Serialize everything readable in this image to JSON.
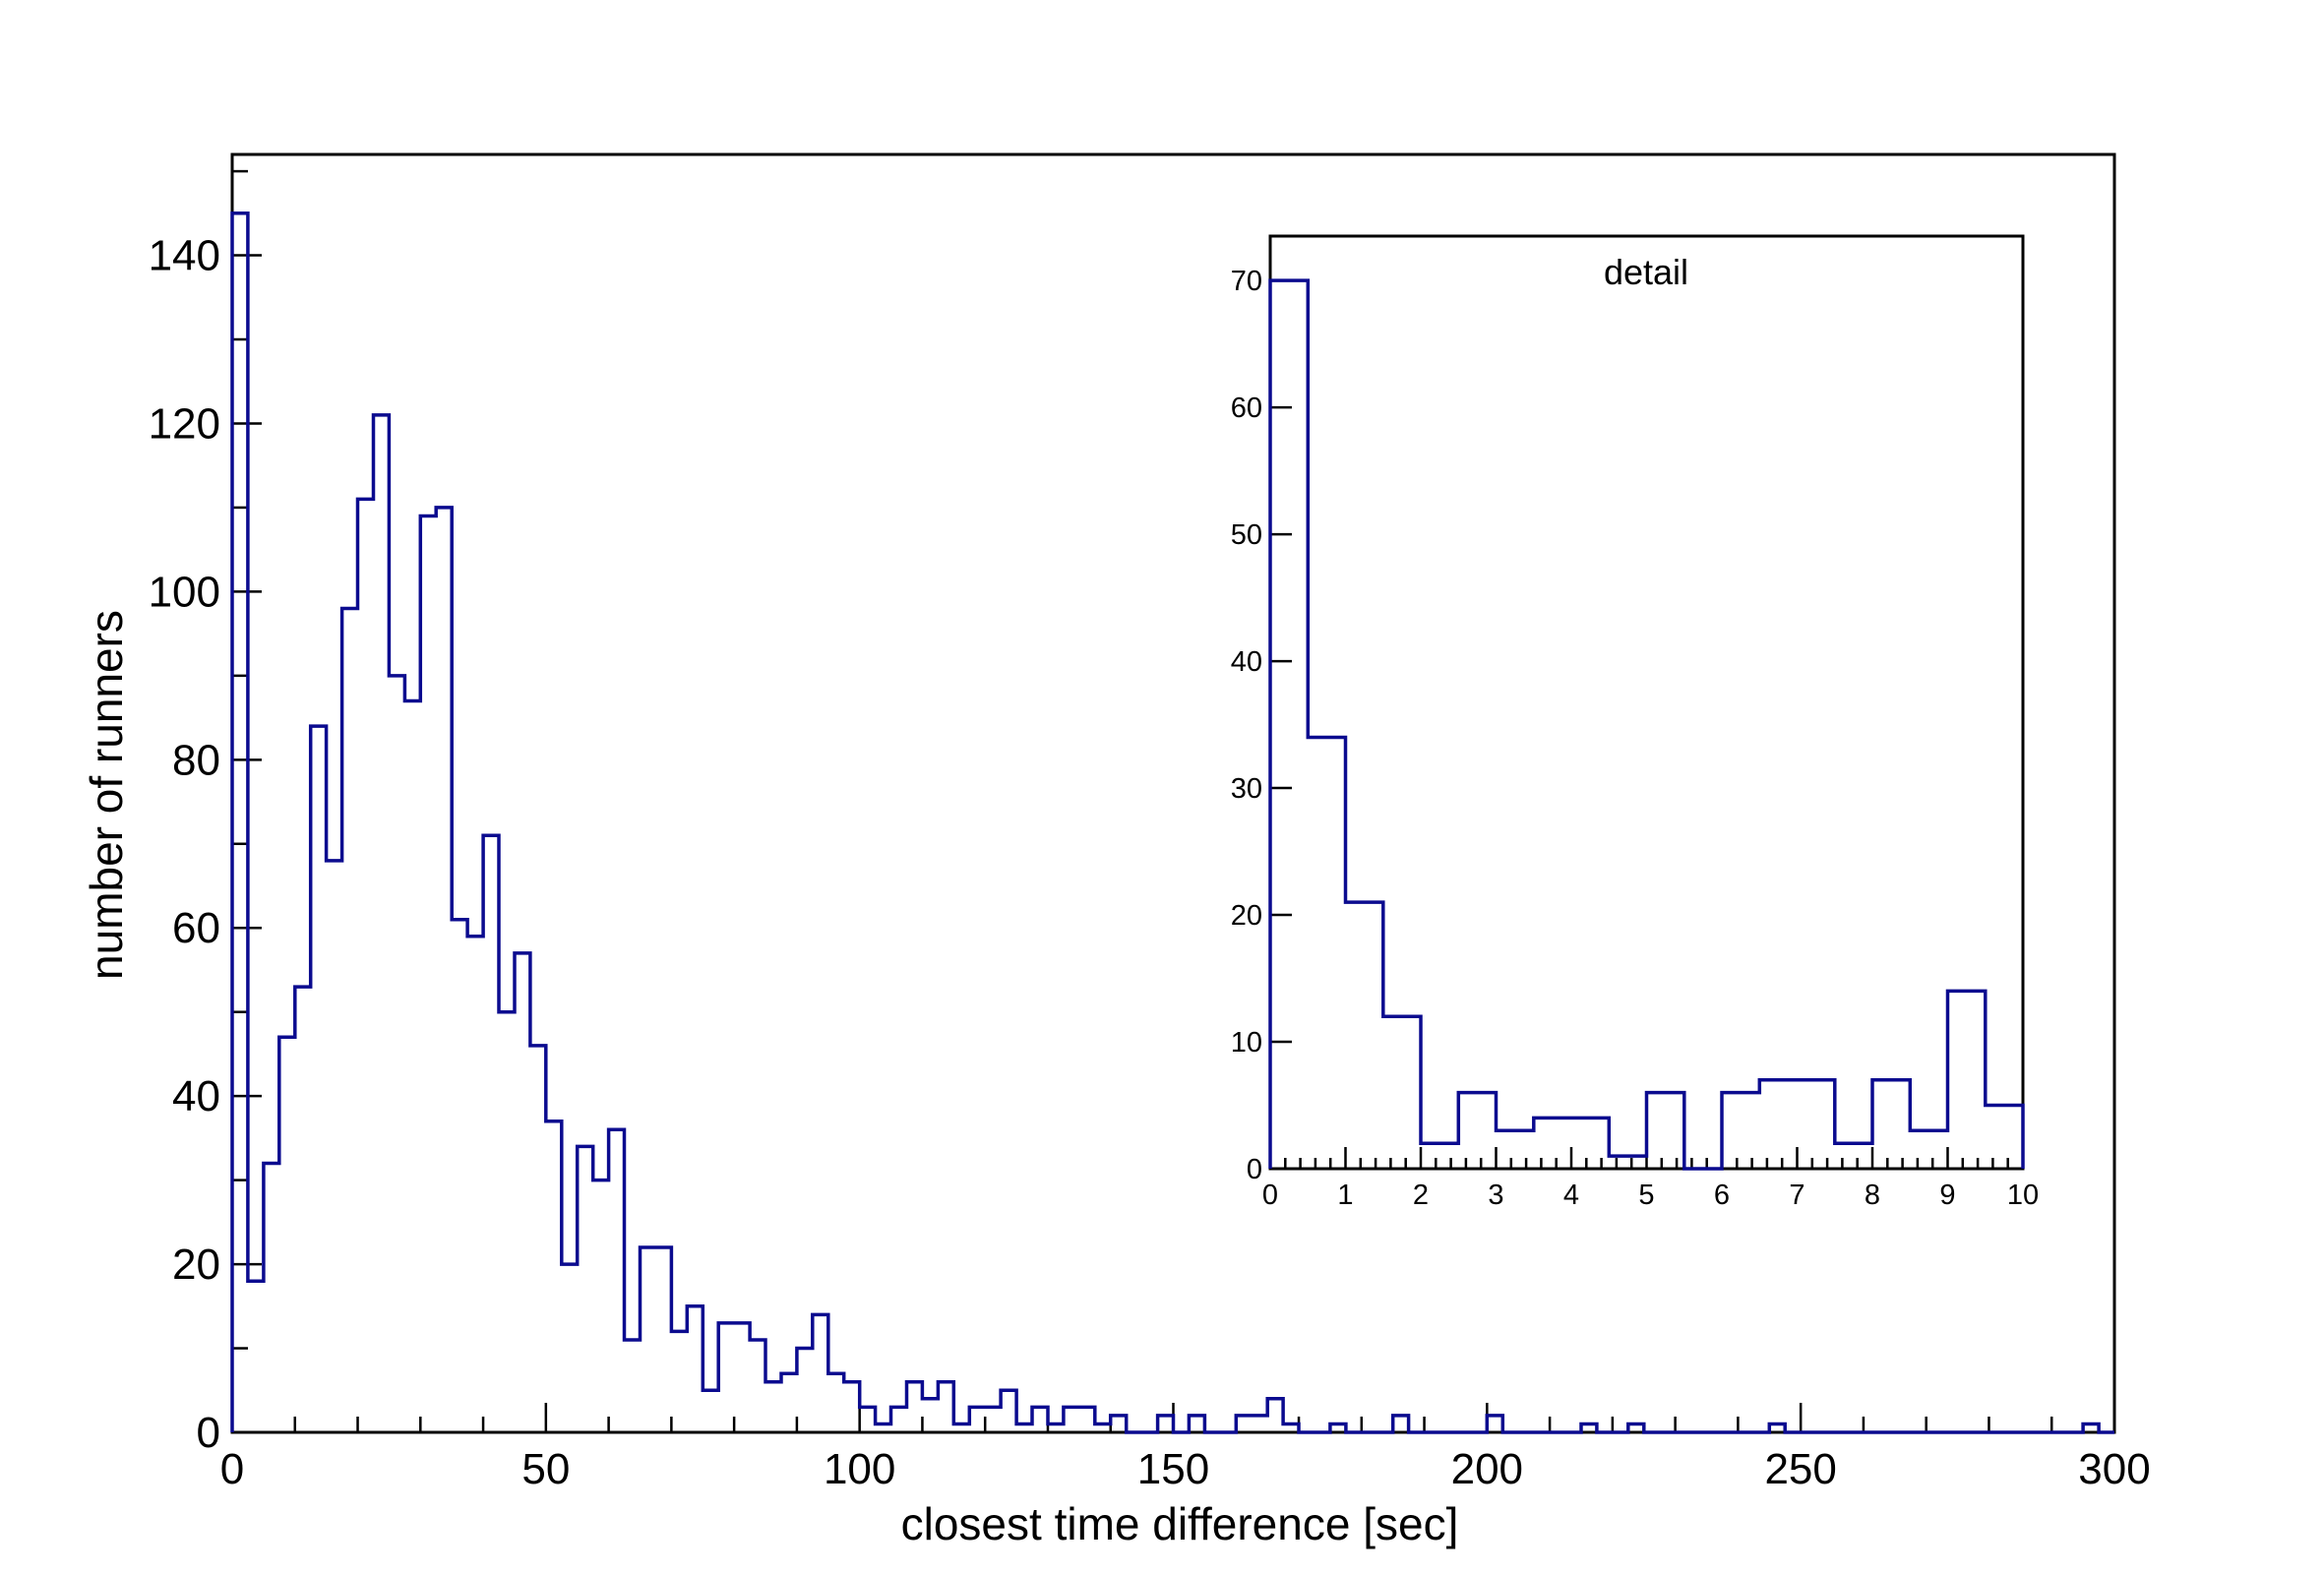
{
  "chart_data": [
    {
      "type": "bar",
      "style": "step-histogram",
      "line_color": "#0b0b8f",
      "title": "",
      "xlabel": "closest time difference [sec]",
      "ylabel": "number of runners",
      "xlim": [
        0,
        300
      ],
      "ylim": [
        0,
        152
      ],
      "bin_width": 2.5,
      "x_ticks": [
        0,
        50,
        100,
        150,
        200,
        250,
        300
      ],
      "y_ticks": [
        0,
        20,
        40,
        60,
        80,
        100,
        120,
        140
      ],
      "grid": false,
      "legend": "none",
      "values": [
        145,
        18,
        32,
        47,
        53,
        84,
        68,
        98,
        111,
        121,
        90,
        87,
        109,
        110,
        61,
        59,
        71,
        50,
        57,
        46,
        37,
        20,
        34,
        30,
        36,
        11,
        22,
        22,
        12,
        15,
        5,
        13,
        13,
        11,
        6,
        7,
        10,
        14,
        7,
        6,
        3,
        1,
        3,
        6,
        4,
        6,
        1,
        3,
        3,
        5,
        1,
        3,
        1,
        3,
        3,
        1,
        2,
        0,
        0,
        2,
        0,
        2,
        0,
        0,
        2,
        2,
        4,
        1,
        0,
        0,
        1,
        0,
        0,
        0,
        2,
        0,
        0,
        0,
        0,
        0,
        2,
        0,
        0,
        0,
        0,
        0,
        1,
        0,
        0,
        1,
        0,
        0,
        0,
        0,
        0,
        0,
        0,
        0,
        1,
        0,
        0,
        0,
        0,
        0,
        0,
        0,
        0,
        0,
        0,
        0,
        0,
        0,
        0,
        0,
        0,
        0,
        0,
        0,
        1,
        0
      ]
    },
    {
      "type": "bar",
      "style": "step-histogram",
      "line_color": "#0b0b8f",
      "title": "detail",
      "xlabel": "",
      "ylabel": "",
      "xlim": [
        0,
        10
      ],
      "ylim": [
        0,
        73.5
      ],
      "bin_width": 0.5,
      "x_ticks": [
        0,
        1,
        2,
        3,
        4,
        5,
        6,
        7,
        8,
        9,
        10
      ],
      "y_ticks": [
        0,
        10,
        20,
        30,
        40,
        50,
        60,
        70
      ],
      "grid": false,
      "legend": "none",
      "values": [
        70,
        34,
        21,
        12,
        2,
        6,
        3,
        4,
        4,
        1,
        6,
        0,
        6,
        7,
        7,
        2,
        7,
        3,
        14,
        5
      ]
    }
  ]
}
